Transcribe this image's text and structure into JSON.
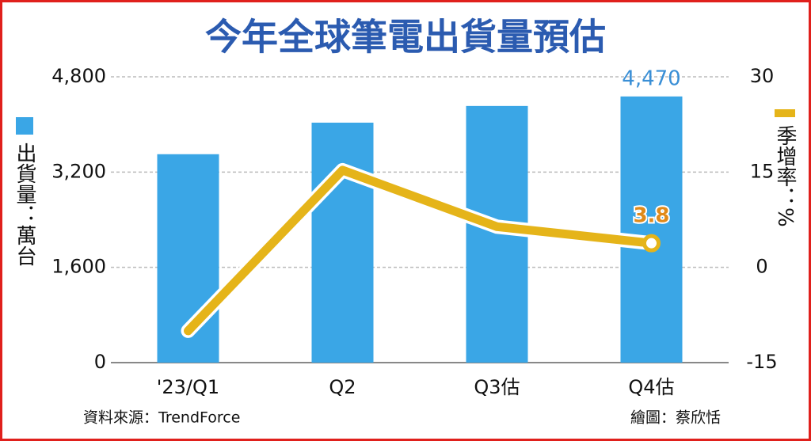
{
  "chart_data": {
    "type": "bar-line",
    "title": "今年全球筆電出貨量預估",
    "categories": [
      "'23/Q1",
      "Q2",
      "Q3估",
      "Q4估"
    ],
    "series": [
      {
        "type": "bar",
        "color": "#3aa6e6",
        "values": [
          3500,
          4030,
          4310,
          4470
        ],
        "value_labels": [
          null,
          null,
          null,
          "4,470"
        ]
      },
      {
        "type": "line",
        "axis": "y2",
        "color": "#e5b419",
        "values": [
          -10,
          15.3,
          6.4,
          3.8
        ],
        "value_labels": [
          null,
          null,
          null,
          "3.8"
        ]
      }
    ],
    "ylabel": "出貨量：萬台",
    "y2label": "季增率：%",
    "ylim": [
      0,
      4800
    ],
    "yticks": [
      0,
      {
        "value": 1600,
        "label": "1,600"
      },
      {
        "value": 3200,
        "label": "3,200"
      },
      {
        "value": 4800,
        "label": "4,800"
      }
    ],
    "y2lim": [
      -15,
      30
    ],
    "y2ticks": [
      -15,
      0,
      15,
      30
    ],
    "grid": true,
    "source": "資料來源：TrendForce",
    "credit": "繪圖：蔡欣恬"
  }
}
